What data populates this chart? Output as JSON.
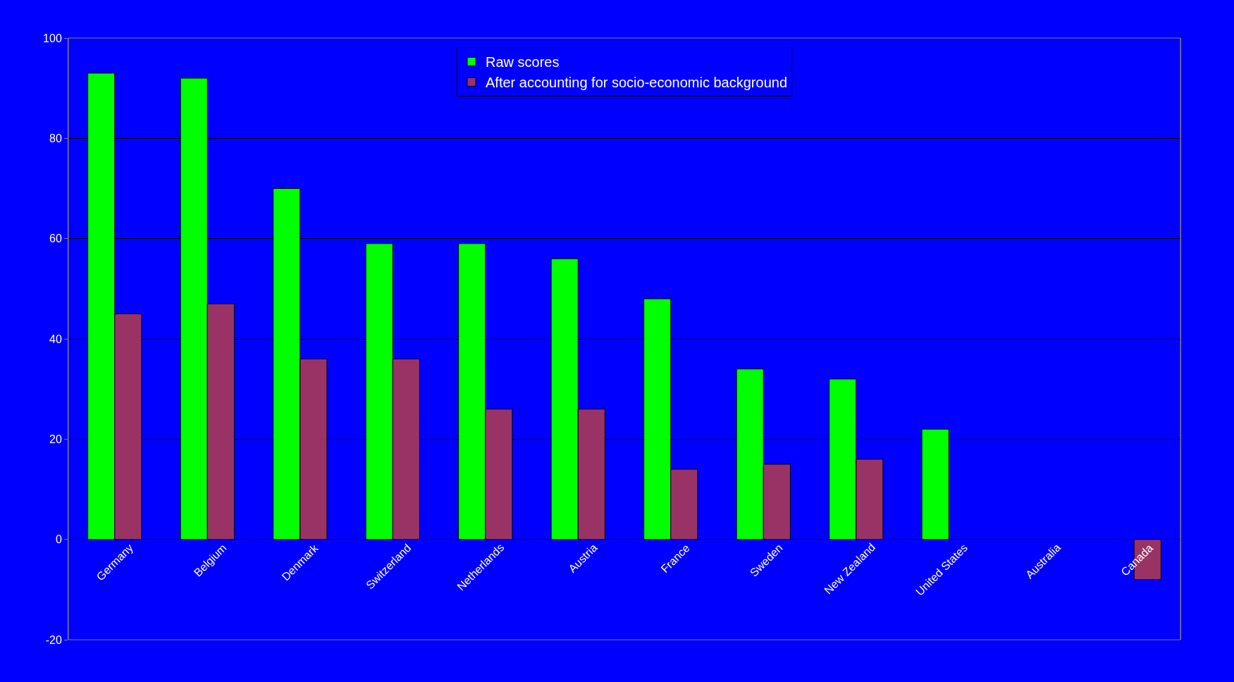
{
  "chart_data": {
    "type": "bar",
    "categories": [
      "Germany",
      "Belgium",
      "Denmark",
      "Switzerland",
      "Netherlands",
      "Austria",
      "France",
      "Sweden",
      "New Zealand",
      "United States",
      "Australia",
      "Canada"
    ],
    "series": [
      {
        "name": "Raw scores",
        "color": "#00ff00",
        "values": [
          93,
          92,
          70,
          59,
          59,
          56,
          48,
          34,
          32,
          22,
          null,
          null
        ]
      },
      {
        "name": "After accounting for socio-economic background",
        "color": "#993366",
        "values": [
          45,
          47,
          36,
          36,
          26,
          26,
          14,
          15,
          16,
          null,
          null,
          -8
        ]
      }
    ],
    "ylim": [
      -20,
      100
    ],
    "yticks": [
      -20,
      0,
      20,
      40,
      60,
      80,
      100
    ],
    "grid": "y",
    "legend": "top"
  }
}
